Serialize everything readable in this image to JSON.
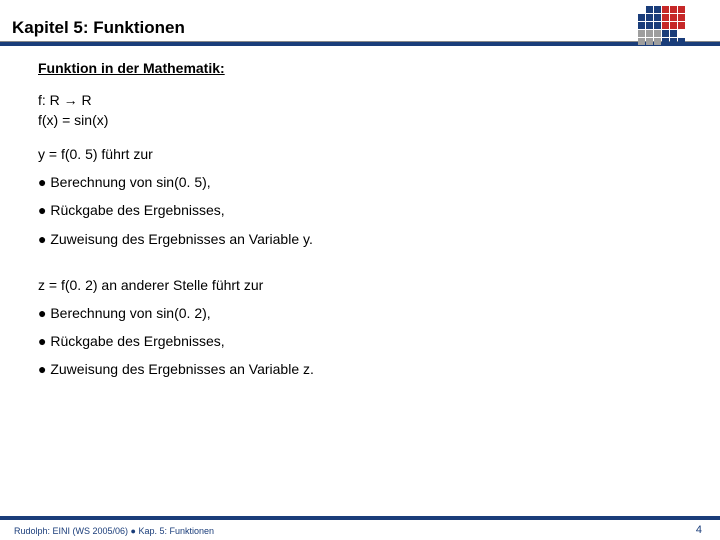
{
  "colors": {
    "accent": "#1a3d7a",
    "logo_dark": "#1a3d7a",
    "logo_red": "#c62828",
    "logo_grey": "#9e9e9e",
    "text": "#000000",
    "background": "#ffffff"
  },
  "header": {
    "title": "Kapitel 5: Funktionen"
  },
  "body": {
    "subheading": "Funktion in der Mathematik:",
    "def1": "f: R → R",
    "def2": "f(x) = sin(x)",
    "ex1_lead": "y = f(0. 5)  führt zur",
    "ex1_b1": "● Berechnung von sin(0. 5),",
    "ex1_b2": "● Rückgabe des Ergebnisses,",
    "ex1_b3": "● Zuweisung des Ergebnisses an Variable y.",
    "ex2_lead": "z = f(0. 2) an anderer Stelle führt zur",
    "ex2_b1": "● Berechnung von sin(0. 2),",
    "ex2_b2": "● Rückgabe des Ergebnisses,",
    "ex2_b3": "● Zuweisung des Ergebnisses an Variable z."
  },
  "footer": {
    "text": "Rudolph: EINI (WS 2005/06)  ●  Kap. 5: Funktionen",
    "page": "4"
  },
  "logo_grid": [
    [
      "",
      "d",
      "d",
      "r",
      "r",
      "r"
    ],
    [
      "d",
      "d",
      "d",
      "r",
      "r",
      "r"
    ],
    [
      "d",
      "d",
      "d",
      "r",
      "r",
      "r"
    ],
    [
      "g",
      "g",
      "g",
      "d",
      "d",
      ""
    ],
    [
      "g",
      "g",
      "g",
      "d",
      "d",
      "d"
    ]
  ]
}
